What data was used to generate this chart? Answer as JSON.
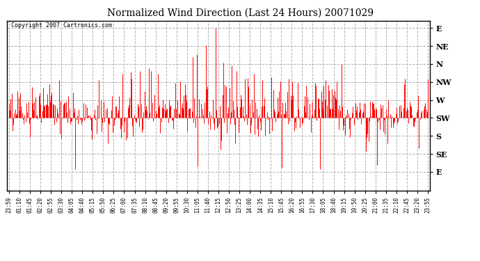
{
  "title": "Normalized Wind Direction (Last 24 Hours) 20071029",
  "copyright_text": "Copyright 2007 Cartronics.com",
  "line_color": "#FF0000",
  "background_color": "#FFFFFF",
  "plot_bg_color": "#FFFFFF",
  "grid_color": "#AAAAAA",
  "ytick_labels": [
    "E",
    "NE",
    "N",
    "NW",
    "W",
    "SW",
    "S",
    "SE",
    "E"
  ],
  "ytick_values": [
    1.0,
    0.875,
    0.75,
    0.625,
    0.5,
    0.375,
    0.25,
    0.125,
    0.0
  ],
  "xtick_labels": [
    "23:59",
    "01:10",
    "01:45",
    "02:20",
    "02:55",
    "03:30",
    "04:05",
    "04:40",
    "05:15",
    "05:50",
    "06:25",
    "07:00",
    "07:35",
    "08:10",
    "08:45",
    "09:20",
    "09:55",
    "10:30",
    "11:05",
    "11:40",
    "12:15",
    "12:50",
    "13:25",
    "14:00",
    "14:35",
    "15:10",
    "15:45",
    "16:20",
    "16:55",
    "17:30",
    "18:05",
    "18:40",
    "19:15",
    "19:50",
    "20:25",
    "21:00",
    "21:35",
    "22:10",
    "22:45",
    "23:20",
    "23:55"
  ],
  "ylim_min": -0.13,
  "ylim_max": 1.05,
  "baseline": 0.375,
  "seed": 42,
  "n_points": 480
}
